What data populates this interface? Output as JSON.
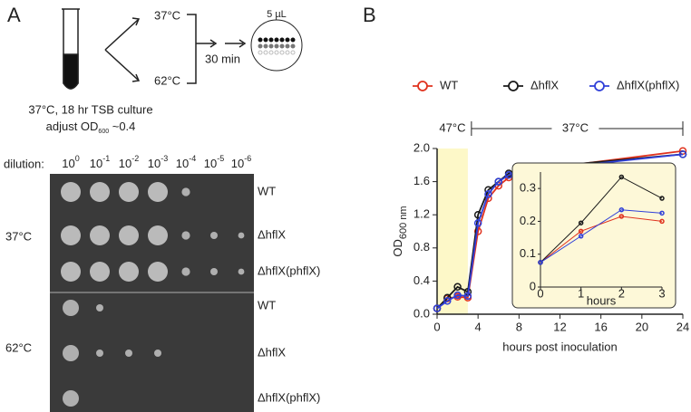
{
  "panel_a": {
    "letter": "A",
    "temp_top": "37°C",
    "temp_bottom": "62°C",
    "time": "30 min",
    "volume": "5 µL",
    "culture_note": "37°C, 18 hr TSB culture",
    "od_note": [
      "adjust OD",
      "600",
      " ~0.4"
    ],
    "dilution_label": "dilution:",
    "dilutions": [
      {
        "base": "10",
        "exp": "0"
      },
      {
        "base": "10",
        "exp": "-1"
      },
      {
        "base": "10",
        "exp": "-2"
      },
      {
        "base": "10",
        "exp": "-3"
      },
      {
        "base": "10",
        "exp": "-4"
      },
      {
        "base": "10",
        "exp": "-5"
      },
      {
        "base": "10",
        "exp": "-6"
      }
    ],
    "groups": [
      {
        "temp": "37°C",
        "rows": [
          "WT",
          "ΔhflX",
          "ΔhflX(phflX)"
        ]
      },
      {
        "temp": "62°C",
        "rows": [
          "WT",
          "ΔhflX",
          "ΔhflX(phflX)"
        ]
      }
    ]
  },
  "panel_b": {
    "letter": "B"
  },
  "chart_data": [
    {
      "type": "line",
      "xlabel": "hours post inoculation",
      "ylabel": "OD",
      "ylabel_subscript": "600 nm",
      "x": [
        0,
        1,
        2,
        3,
        4,
        5,
        6,
        7,
        8,
        24
      ],
      "series": [
        {
          "name": "WT",
          "color": "#e0321e",
          "values": [
            0.07,
            0.19,
            0.21,
            0.2,
            1.0,
            1.4,
            1.55,
            1.65,
            1.72,
            1.97
          ]
        },
        {
          "name": "ΔhflX",
          "color": "#1a1a1a",
          "values": [
            0.07,
            0.2,
            0.33,
            0.27,
            1.2,
            1.5,
            1.6,
            1.7,
            1.75,
            1.93
          ]
        },
        {
          "name": "ΔhflX(phflX)",
          "color": "#2f3fd8",
          "values": [
            0.07,
            0.16,
            0.23,
            0.22,
            1.1,
            1.45,
            1.6,
            1.68,
            1.72,
            1.93
          ]
        }
      ],
      "xlim": [
        0,
        24
      ],
      "xticks": [
        0,
        4,
        8,
        12,
        16,
        20,
        24
      ],
      "ylim": [
        0,
        2
      ],
      "yticks": [
        {
          "value": 0,
          "label": "0.0"
        },
        0.4,
        0.8,
        1.2,
        1.6,
        {
          "value": 2,
          "label": "2.0"
        }
      ],
      "annotations": [
        {
          "text": "47°C",
          "x": [
            0,
            3
          ]
        },
        {
          "text": "37°C",
          "x": [
            3,
            24
          ]
        }
      ],
      "shade_color": "#fdf8c8",
      "legend": "top"
    },
    {
      "type": "line",
      "xlabel": "hours",
      "x": [
        0,
        1,
        2,
        3
      ],
      "series": [
        {
          "color": "#e0321e",
          "values": [
            0.075,
            0.17,
            0.215,
            0.2
          ]
        },
        {
          "color": "#1a1a1a",
          "values": [
            0.075,
            0.195,
            0.335,
            0.27
          ]
        },
        {
          "color": "#2f3fd8",
          "values": [
            0.075,
            0.155,
            0.235,
            0.225
          ]
        }
      ],
      "xlim": [
        0,
        3
      ],
      "xticks": [
        0,
        1,
        2,
        3
      ],
      "ylim": [
        0,
        0.35
      ],
      "yticks": [
        0,
        0.1,
        0.2,
        0.3
      ],
      "background": "#fdf8d8"
    }
  ]
}
